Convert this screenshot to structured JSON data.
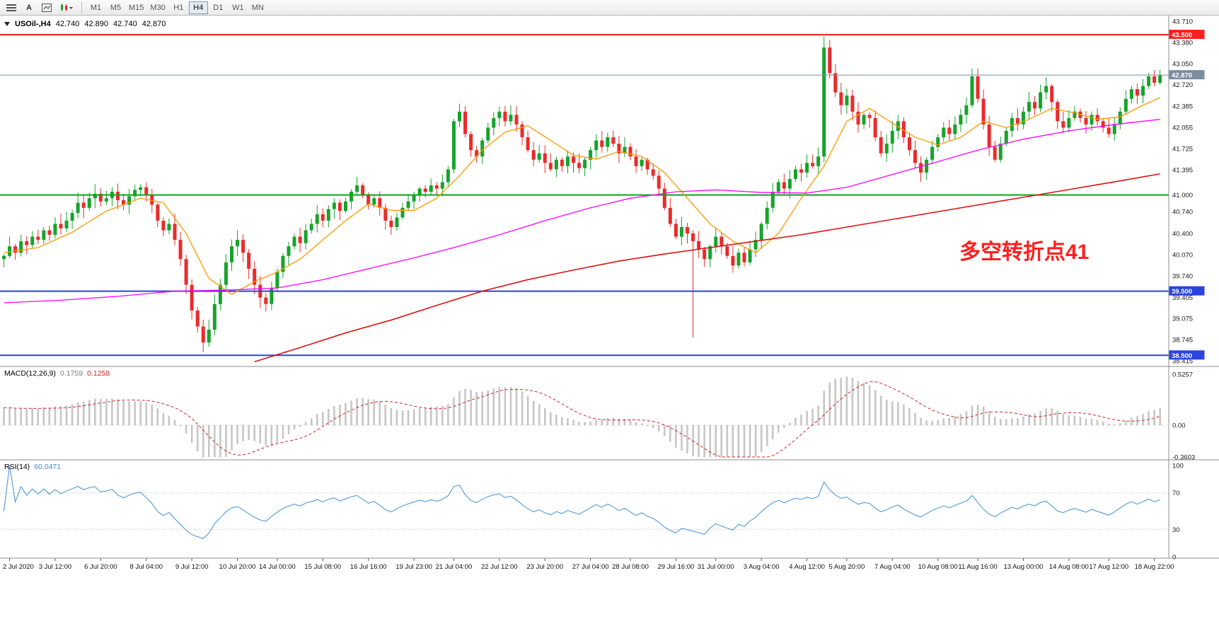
{
  "toolbar": {
    "tools": [
      {
        "name": "chart-list",
        "label": ""
      },
      {
        "name": "text-tool",
        "label": "A"
      },
      {
        "name": "chart-shift",
        "label": ""
      },
      {
        "name": "indicators",
        "label": ""
      }
    ],
    "timeframes": [
      "M1",
      "M5",
      "M15",
      "M30",
      "H1",
      "H4",
      "D1",
      "W1",
      "MN"
    ],
    "active_timeframe": "H4"
  },
  "chart": {
    "title": {
      "symbol_period": "USOil-,H4",
      "open": "42.740",
      "high": "42.890",
      "low": "42.740",
      "close": "42.870"
    },
    "annotation": {
      "text": "多空转折点41",
      "color": "#ff1f1f"
    },
    "price_axis_ticks": [
      "43.710",
      "43.380",
      "43.050",
      "42.720",
      "42.385",
      "42.055",
      "41.725",
      "41.395",
      "41.000",
      "40.740",
      "40.400",
      "40.070",
      "39.740",
      "39.405",
      "39.075",
      "38.745",
      "38.415"
    ],
    "hlines": [
      {
        "value": 43.5,
        "label": "43.500",
        "color": "#ff1f1f",
        "width": 2
      },
      {
        "value": 41.0,
        "label": null,
        "color": "#0da51d",
        "width": 2
      },
      {
        "value": 39.5,
        "label": "39.500",
        "color": "#2b44dd",
        "width": 2
      },
      {
        "value": 38.5,
        "label": "38.500",
        "color": "#2b44dd",
        "width": 2
      }
    ],
    "current_price": {
      "value": 42.87,
      "label": "42.870"
    },
    "time_axis": {
      "labels": [
        {
          "bar": 1,
          "text": "2 Jul 2020"
        },
        {
          "bar": 9,
          "text": "3 Jul 12:00"
        },
        {
          "bar": 17,
          "text": "6 Jul 20:00"
        },
        {
          "bar": 25,
          "text": "8 Jul 04:00"
        },
        {
          "bar": 33,
          "text": "9 Jul 12:00"
        },
        {
          "bar": 41,
          "text": "10 Jul 20:00"
        },
        {
          "bar": 48,
          "text": "14 Jul 00:00"
        },
        {
          "bar": 56,
          "text": "15 Jul 08:00"
        },
        {
          "bar": 64,
          "text": "16 Jul 16:00"
        },
        {
          "bar": 72,
          "text": "19 Jul 23:00"
        },
        {
          "bar": 79,
          "text": "21 Jul 04:00"
        },
        {
          "bar": 87,
          "text": "22 Jul 12:00"
        },
        {
          "bar": 95,
          "text": "23 Jul 20:00"
        },
        {
          "bar": 103,
          "text": "27 Jul 04:00"
        },
        {
          "bar": 110,
          "text": "28 Jul 08:00"
        },
        {
          "bar": 118,
          "text": "29 Jul 16:00"
        },
        {
          "bar": 125,
          "text": "31 Jul 00:00"
        },
        {
          "bar": 133,
          "text": "3 Aug 04:00"
        },
        {
          "bar": 141,
          "text": "4 Aug 12:00"
        },
        {
          "bar": 148,
          "text": "5 Aug 20:00"
        },
        {
          "bar": 156,
          "text": "7 Aug 04:00"
        },
        {
          "bar": 164,
          "text": "10 Aug 08:00"
        },
        {
          "bar": 171,
          "text": "11 Aug 16:00"
        },
        {
          "bar": 179,
          "text": "13 Aug 00:00"
        },
        {
          "bar": 187,
          "text": "14 Aug 08:00"
        },
        {
          "bar": 194,
          "text": "17 Aug 12:00"
        },
        {
          "bar": 202,
          "text": "18 Aug 22:00"
        }
      ]
    }
  },
  "chart_data": {
    "type": "candlestick",
    "symbol": "USOil",
    "period": "H4",
    "price_range_shown": [
      38.415,
      43.71
    ],
    "first_open": 40.0,
    "closes": [
      40.05,
      40.2,
      40.1,
      40.28,
      40.22,
      40.35,
      40.3,
      40.45,
      40.38,
      40.55,
      40.48,
      40.6,
      40.72,
      40.88,
      40.8,
      40.95,
      41.02,
      40.9,
      40.95,
      41.05,
      40.92,
      40.85,
      40.98,
      41.08,
      41.12,
      41.0,
      40.85,
      40.6,
      40.45,
      40.55,
      40.3,
      40.0,
      39.6,
      39.2,
      38.95,
      38.7,
      38.9,
      39.3,
      39.6,
      39.95,
      40.2,
      40.3,
      40.1,
      39.85,
      39.6,
      39.4,
      39.3,
      39.55,
      39.8,
      40.05,
      40.2,
      40.35,
      40.25,
      40.45,
      40.55,
      40.7,
      40.6,
      40.78,
      40.88,
      40.75,
      40.9,
      41.05,
      41.15,
      41.0,
      40.85,
      40.95,
      40.8,
      40.6,
      40.5,
      40.65,
      40.8,
      40.9,
      41.0,
      41.1,
      41.05,
      41.15,
      41.1,
      41.2,
      41.4,
      42.15,
      42.3,
      41.95,
      41.7,
      41.6,
      41.85,
      42.05,
      42.2,
      42.3,
      42.15,
      42.25,
      42.1,
      41.9,
      41.7,
      41.55,
      41.65,
      41.5,
      41.4,
      41.55,
      41.45,
      41.6,
      41.5,
      41.42,
      41.55,
      41.7,
      41.85,
      41.75,
      41.9,
      41.8,
      41.65,
      41.75,
      41.6,
      41.45,
      41.55,
      41.4,
      41.3,
      41.1,
      40.8,
      40.55,
      40.35,
      40.5,
      40.4,
      40.28,
      40.15,
      40.0,
      40.2,
      40.35,
      40.2,
      40.05,
      39.9,
      40.1,
      39.95,
      40.15,
      40.3,
      40.55,
      40.8,
      41.05,
      41.2,
      41.1,
      41.25,
      41.4,
      41.35,
      41.5,
      41.45,
      41.6,
      43.3,
      42.9,
      42.6,
      42.4,
      42.55,
      42.3,
      42.1,
      42.25,
      42.2,
      41.9,
      41.65,
      41.8,
      42.0,
      42.15,
      41.9,
      41.7,
      41.5,
      41.35,
      41.55,
      41.75,
      41.9,
      42.05,
      41.95,
      42.1,
      42.25,
      42.4,
      42.85,
      42.5,
      42.1,
      41.75,
      41.55,
      41.8,
      42.0,
      42.2,
      42.1,
      42.3,
      42.45,
      42.35,
      42.6,
      42.7,
      42.45,
      42.15,
      42.05,
      42.2,
      42.3,
      42.2,
      42.1,
      42.25,
      42.15,
      42.05,
      41.95,
      42.1,
      42.3,
      42.5,
      42.65,
      42.55,
      42.7,
      42.85,
      42.75,
      42.87
    ],
    "wick_overrides": {
      "35": {
        "low": 38.55
      },
      "46": {
        "low": 39.18
      },
      "121": {
        "high": 40.45,
        "low": 38.78
      },
      "144": {
        "high": 43.47
      },
      "145": {
        "high": 43.42
      },
      "170": {
        "high": 42.97
      },
      "203": {
        "high": 42.95
      }
    },
    "moving_averages": [
      {
        "name": "ma-fast-orange",
        "color": "#ff9900",
        "width": 1.3,
        "points": [
          [
            0,
            40.1
          ],
          [
            6,
            40.18
          ],
          [
            12,
            40.42
          ],
          [
            18,
            40.75
          ],
          [
            24,
            40.95
          ],
          [
            28,
            40.88
          ],
          [
            32,
            40.4
          ],
          [
            36,
            39.7
          ],
          [
            40,
            39.45
          ],
          [
            44,
            39.65
          ],
          [
            48,
            39.8
          ],
          [
            52,
            40.0
          ],
          [
            56,
            40.3
          ],
          [
            60,
            40.6
          ],
          [
            64,
            40.86
          ],
          [
            68,
            40.76
          ],
          [
            72,
            40.76
          ],
          [
            76,
            40.95
          ],
          [
            80,
            41.3
          ],
          [
            84,
            41.7
          ],
          [
            88,
            41.98
          ],
          [
            92,
            42.08
          ],
          [
            96,
            41.85
          ],
          [
            100,
            41.62
          ],
          [
            104,
            41.56
          ],
          [
            108,
            41.68
          ],
          [
            112,
            41.6
          ],
          [
            116,
            41.35
          ],
          [
            120,
            40.95
          ],
          [
            124,
            40.55
          ],
          [
            128,
            40.28
          ],
          [
            132,
            40.1
          ],
          [
            136,
            40.4
          ],
          [
            140,
            40.95
          ],
          [
            144,
            41.45
          ],
          [
            148,
            42.15
          ],
          [
            152,
            42.35
          ],
          [
            156,
            42.12
          ],
          [
            160,
            41.9
          ],
          [
            164,
            41.78
          ],
          [
            168,
            41.9
          ],
          [
            172,
            42.15
          ],
          [
            176,
            42.05
          ],
          [
            180,
            42.18
          ],
          [
            184,
            42.35
          ],
          [
            188,
            42.28
          ],
          [
            192,
            42.18
          ],
          [
            196,
            42.22
          ],
          [
            200,
            42.4
          ],
          [
            203,
            42.52
          ]
        ]
      },
      {
        "name": "ma-mid-magenta",
        "color": "#ff00ff",
        "width": 1.3,
        "points": [
          [
            0,
            39.32
          ],
          [
            10,
            39.36
          ],
          [
            20,
            39.42
          ],
          [
            30,
            39.5
          ],
          [
            40,
            39.52
          ],
          [
            48,
            39.55
          ],
          [
            56,
            39.68
          ],
          [
            64,
            39.85
          ],
          [
            72,
            40.02
          ],
          [
            79,
            40.18
          ],
          [
            87,
            40.38
          ],
          [
            95,
            40.6
          ],
          [
            103,
            40.8
          ],
          [
            110,
            40.95
          ],
          [
            118,
            41.05
          ],
          [
            125,
            41.08
          ],
          [
            133,
            41.04
          ],
          [
            141,
            41.03
          ],
          [
            148,
            41.12
          ],
          [
            156,
            41.32
          ],
          [
            164,
            41.52
          ],
          [
            171,
            41.7
          ],
          [
            179,
            41.87
          ],
          [
            187,
            42.0
          ],
          [
            195,
            42.1
          ],
          [
            203,
            42.18
          ]
        ]
      },
      {
        "name": "ma-slow-red",
        "color": "#e01010",
        "width": 1.6,
        "points": [
          [
            44,
            38.4
          ],
          [
            52,
            38.62
          ],
          [
            60,
            38.85
          ],
          [
            68,
            39.05
          ],
          [
            76,
            39.28
          ],
          [
            84,
            39.5
          ],
          [
            92,
            39.68
          ],
          [
            100,
            39.83
          ],
          [
            108,
            39.97
          ],
          [
            116,
            40.08
          ],
          [
            124,
            40.18
          ],
          [
            132,
            40.28
          ],
          [
            140,
            40.38
          ],
          [
            148,
            40.5
          ],
          [
            156,
            40.62
          ],
          [
            164,
            40.74
          ],
          [
            172,
            40.86
          ],
          [
            180,
            40.98
          ],
          [
            188,
            41.1
          ],
          [
            196,
            41.22
          ],
          [
            203,
            41.33
          ]
        ]
      }
    ]
  },
  "macd": {
    "label": "MACD(12,26,9)",
    "value_main": "0.1759",
    "value_signal": "0.1258",
    "params": {
      "fast": 12,
      "slow": 26,
      "signal": 9
    },
    "axis_ticks": [
      "0.5257",
      "0.00",
      "-0.3603"
    ]
  },
  "rsi": {
    "label": "RSI(14)",
    "value": "60.0471",
    "period": 14,
    "axis_ticks": [
      "100",
      "70",
      "30",
      "0"
    ],
    "levels": [
      70,
      30
    ]
  },
  "colors": {
    "bull": "#17a32b",
    "bear": "#ea2b2b",
    "line_red": "#ff1f1f",
    "line_green": "#0da51d",
    "line_blue": "#2b44dd",
    "current": "#7b8da0",
    "macd_hist": "#cdcdcd",
    "macd_hist_border": "#a8a8a8",
    "macd_signal": "#d42222",
    "rsi_line": "#4f9bd8",
    "axis_text": "#1a1a1a"
  }
}
